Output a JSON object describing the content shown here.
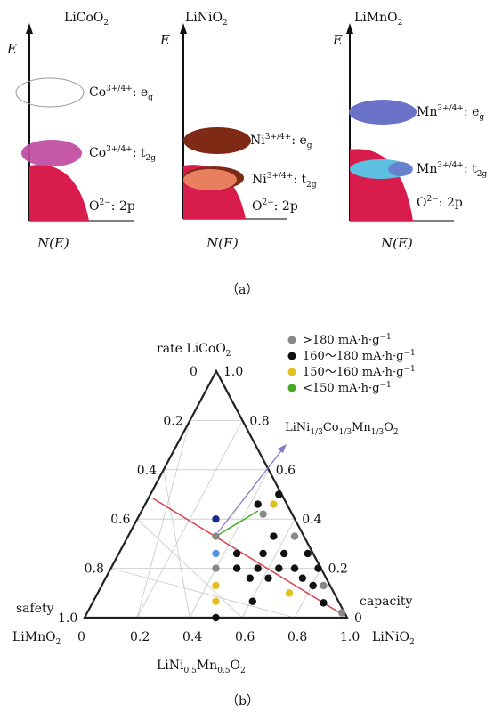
{
  "panel_a": {
    "caption": "（a）",
    "axis_y": "E",
    "axis_x": "N(E)",
    "oxygen_band": "O",
    "oxygen_sup": "2−",
    "oxygen_rest": ": 2p",
    "columns": [
      {
        "title_main": "LiCoO",
        "title_sub": "2",
        "upper": {
          "el": "Co",
          "sup": "3+/4+",
          "orb": ": e",
          "orb_sub": "g"
        },
        "lower": {
          "el": "Co",
          "sup": "3+/4+",
          "orb": ": t",
          "orb_sub": "2g"
        }
      },
      {
        "title_main": "LiNiO",
        "title_sub": "2",
        "upper": {
          "el": "Ni",
          "sup": "3+/4+",
          "orb": ": e",
          "orb_sub": "g"
        },
        "lower": {
          "el": "Ni",
          "sup": "3+/4+",
          "orb": ": t",
          "orb_sub": "2g"
        }
      },
      {
        "title_main": "LiMnO",
        "title_sub": "2",
        "upper": {
          "el": "Mn",
          "sup": "3+/4+",
          "orb": ": e",
          "orb_sub": "g"
        },
        "lower": {
          "el": "Mn",
          "sup": "3+/4+",
          "orb": ": t",
          "orb_sub": "2g"
        }
      }
    ],
    "colors": {
      "oxygen": "#d81d4c",
      "co_t2g": "#c04aa0",
      "ni_eg": "#7e2a14",
      "ni_t2g": "#e88060",
      "mn_eg": "#6a72c8",
      "mn_t2g": "#5cc0e0"
    }
  },
  "panel_b": {
    "caption": "（b）",
    "vertex_top": "rate LiCoO",
    "vertex_top_sub": "2",
    "vertex_left_label": "safety",
    "vertex_left_name": "LiMnO",
    "vertex_left_sub": "2",
    "vertex_right_label": "capacity",
    "vertex_right_name": "LiNiO",
    "vertex_right_sub": "2",
    "bottom_mid_name": "LiNi",
    "bottom_mid_sub1": "0.5",
    "bottom_mid_mid": "Mn",
    "bottom_mid_sub2": "0.5",
    "bottom_mid_tail": "O",
    "bottom_mid_sub3": "2",
    "arrow_label": "LiNi",
    "arrow_sub1": "1/3",
    "arrow_mid1": "Co",
    "arrow_sub2": "1/3",
    "arrow_mid2": "Mn",
    "arrow_sub3": "1/3",
    "arrow_tail": "O",
    "arrow_sub4": "2",
    "left_ticks": [
      "0",
      "0.2",
      "0.4",
      "0.6",
      "0.8",
      "1.0"
    ],
    "right_ticks": [
      "1.0",
      "0.8",
      "0.6",
      "0.4",
      "0.2",
      "0"
    ],
    "bottom_ticks": [
      "0",
      "0.2",
      "0.4",
      "0.6",
      "0.8",
      "1.0"
    ],
    "legend": [
      {
        "text": ">180 mA·h·g",
        "sup": "−1",
        "color": "#888888"
      },
      {
        "text": "160～180 mA·h·g",
        "sup": "−1",
        "color": "#111111"
      },
      {
        "text": "150～160 mA·h·g",
        "sup": "−1",
        "color": "#e0c020"
      },
      {
        "text": "<150 mA·h·g",
        "sup": "−1",
        "color": "#44aa22"
      }
    ],
    "points": [
      {
        "c": "#111111",
        "x": 0.5,
        "y": 0.0
      },
      {
        "c": "#e0c020",
        "x": 0.5,
        "y": 0.066
      },
      {
        "c": "#e0c020",
        "x": 0.5,
        "y": 0.13
      },
      {
        "c": "#888888",
        "x": 0.5,
        "y": 0.2
      },
      {
        "c": "#5b8fe0",
        "x": 0.5,
        "y": 0.26
      },
      {
        "c": "#888888",
        "x": 0.5,
        "y": 0.33
      },
      {
        "c": "#1a2a8a",
        "x": 0.5,
        "y": 0.4
      },
      {
        "c": "#111111",
        "x": 0.64,
        "y": 0.066
      },
      {
        "c": "#111111",
        "x": 0.63,
        "y": 0.16
      },
      {
        "c": "#111111",
        "x": 0.58,
        "y": 0.2
      },
      {
        "c": "#111111",
        "x": 0.58,
        "y": 0.26
      },
      {
        "c": "#111111",
        "x": 0.66,
        "y": 0.2
      },
      {
        "c": "#111111",
        "x": 0.7,
        "y": 0.16
      },
      {
        "c": "#111111",
        "x": 0.74,
        "y": 0.2
      },
      {
        "c": "#111111",
        "x": 0.76,
        "y": 0.26
      },
      {
        "c": "#111111",
        "x": 0.8,
        "y": 0.2
      },
      {
        "c": "#111111",
        "x": 0.68,
        "y": 0.26
      },
      {
        "c": "#111111",
        "x": 0.72,
        "y": 0.33
      },
      {
        "c": "#888888",
        "x": 0.8,
        "y": 0.33
      },
      {
        "c": "#111111",
        "x": 0.83,
        "y": 0.16
      },
      {
        "c": "#111111",
        "x": 0.87,
        "y": 0.13
      },
      {
        "c": "#888888",
        "x": 0.91,
        "y": 0.13
      },
      {
        "c": "#111111",
        "x": 0.89,
        "y": 0.2
      },
      {
        "c": "#111111",
        "x": 0.85,
        "y": 0.26
      },
      {
        "c": "#e0c020",
        "x": 0.78,
        "y": 0.1
      },
      {
        "c": "#111111",
        "x": 0.91,
        "y": 0.06
      },
      {
        "c": "#888888",
        "x": 0.98,
        "y": 0.02
      },
      {
        "c": "#111111",
        "x": 0.74,
        "y": 0.5
      },
      {
        "c": "#e0c020",
        "x": 0.72,
        "y": 0.46
      },
      {
        "c": "#888888",
        "x": 0.68,
        "y": 0.42
      },
      {
        "c": "#111111",
        "x": 0.66,
        "y": 0.46
      }
    ]
  }
}
